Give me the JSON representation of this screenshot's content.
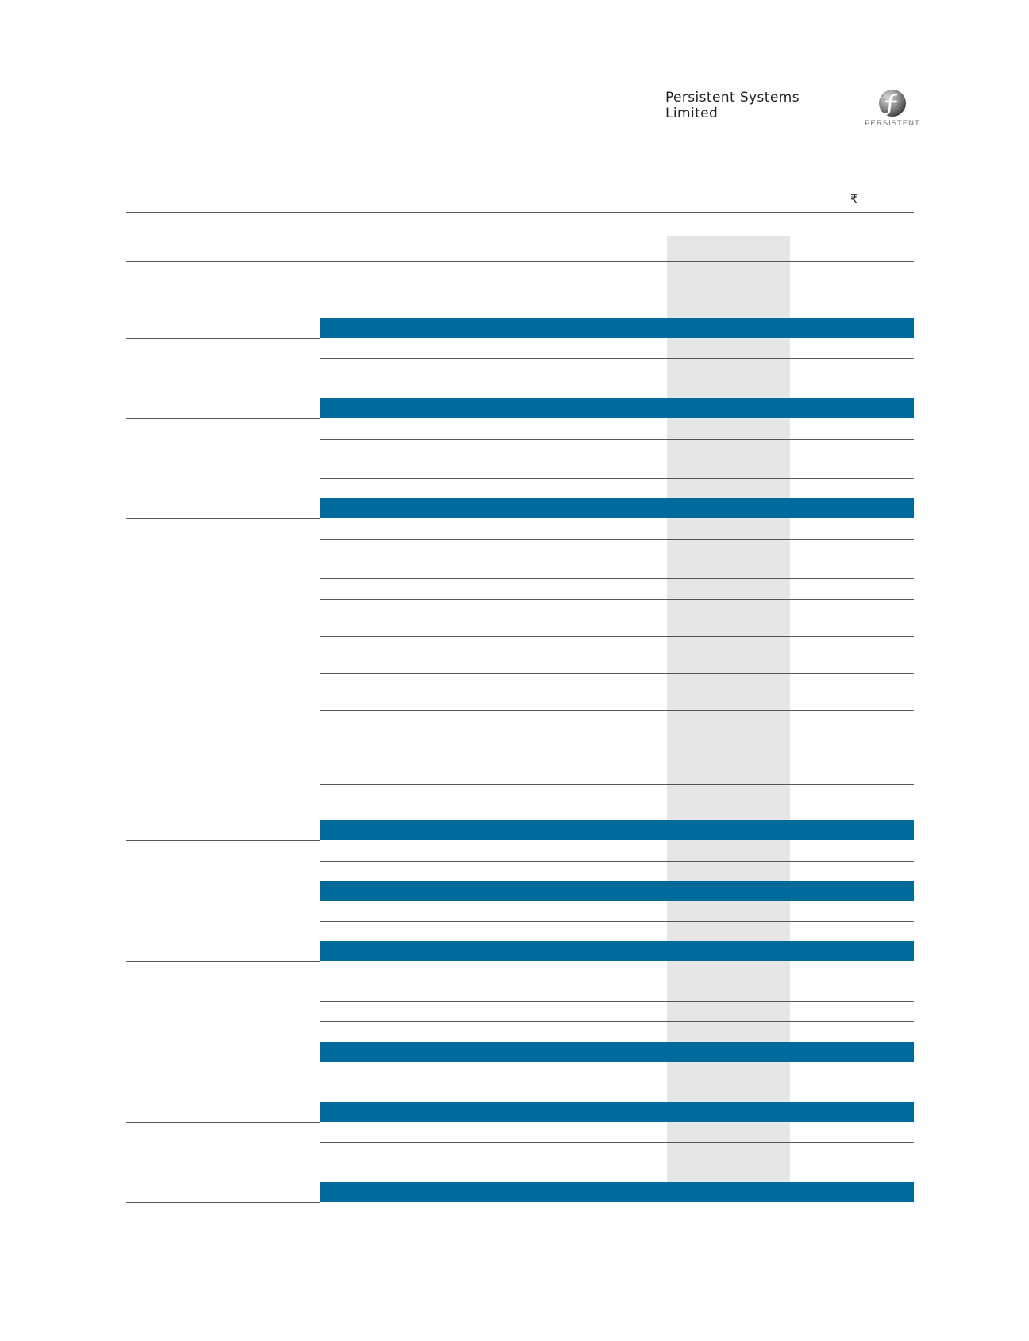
{
  "header": {
    "company_name": "Persistent Systems Limited",
    "logo_text": "PERSISTENT"
  },
  "table": {
    "currency_symbol": "₹"
  },
  "colors": {
    "band_blue": "#006b9b",
    "highlight_column": "#e6e6e6",
    "rule": "#555555"
  }
}
